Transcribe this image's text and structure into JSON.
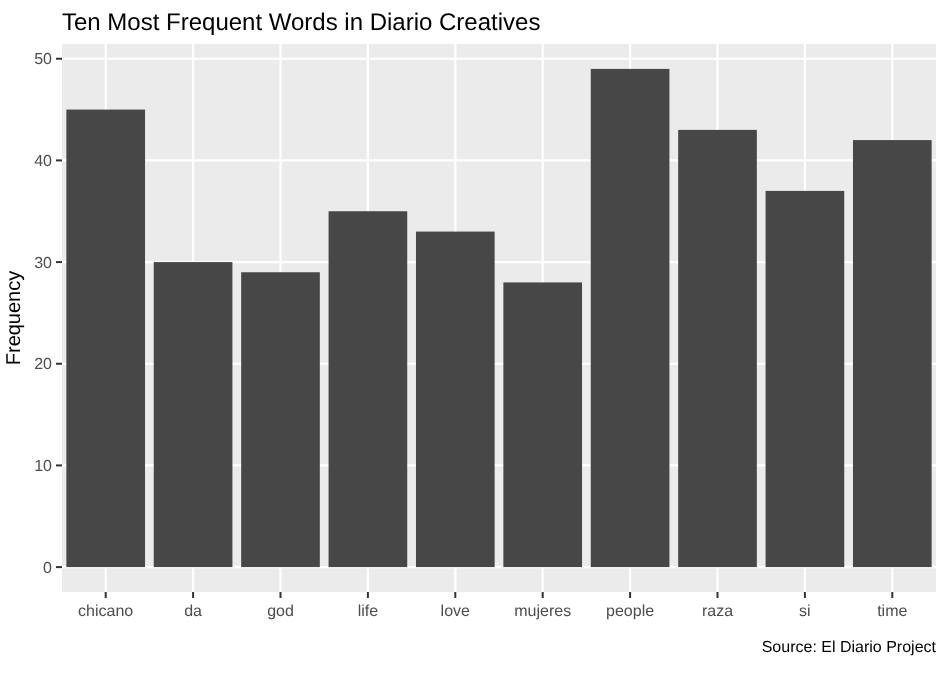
{
  "chart_data": {
    "type": "bar",
    "title": "Ten Most Frequent Words in Diario Creatives",
    "ylabel": "Frequency",
    "categories": [
      "chicano",
      "da",
      "god",
      "life",
      "love",
      "mujeres",
      "people",
      "raza",
      "si",
      "time"
    ],
    "values": [
      45,
      30,
      29,
      35,
      33,
      28,
      49,
      43,
      37,
      42
    ],
    "color": "#474747",
    "ylim": [
      -2.45,
      51.45
    ],
    "yticks": [
      0,
      10,
      20,
      30,
      40,
      50
    ],
    "grid": true,
    "annotations": [
      "Source: El Diario Project"
    ]
  }
}
